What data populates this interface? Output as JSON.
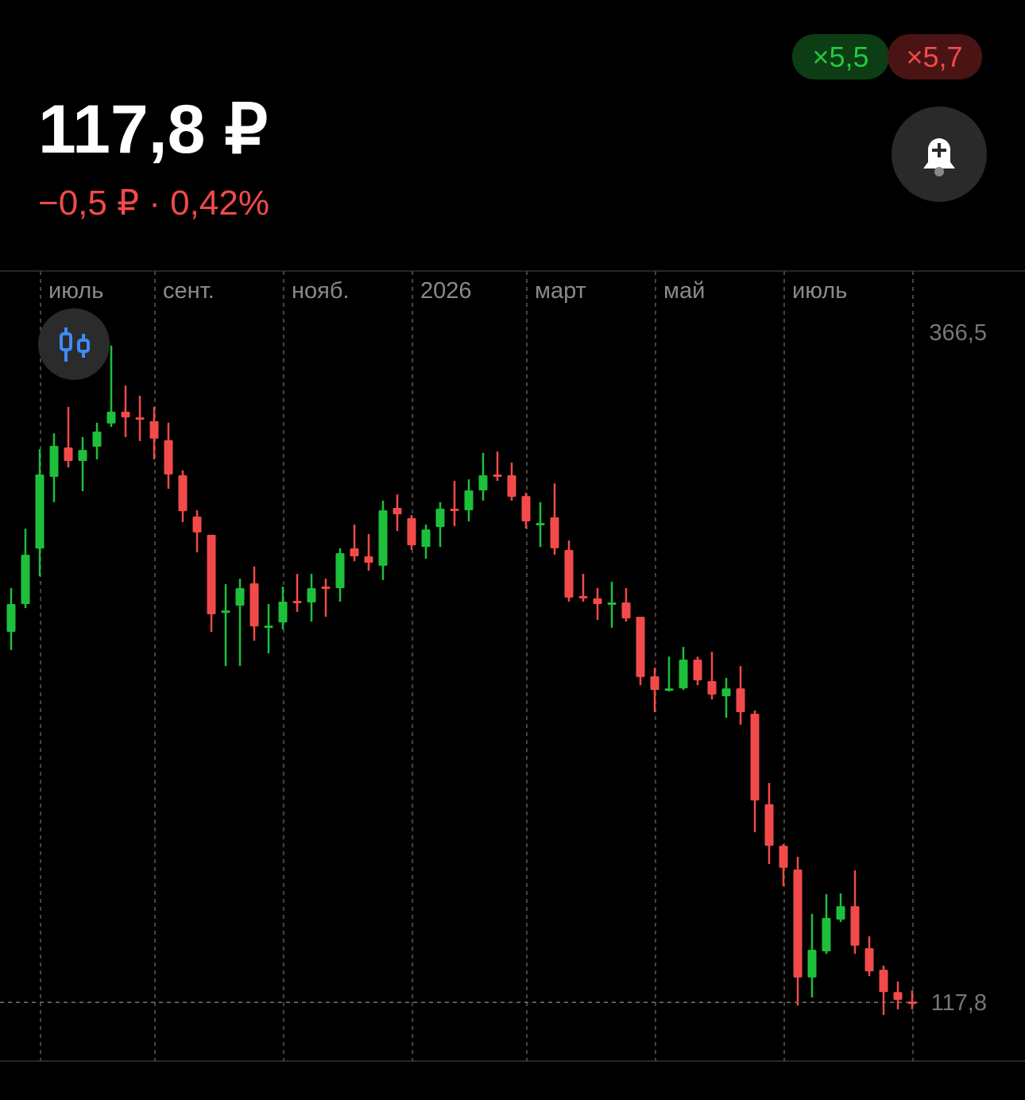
{
  "header": {
    "price": "117,8 ₽",
    "change": "−0,5 ₽ · 0,42%",
    "badges": [
      "×5,5",
      "×5,7"
    ]
  },
  "chart_data": {
    "type": "candlestick",
    "categories": [
      null,
      null,
      "июль",
      null,
      null,
      null,
      null,
      null,
      null,
      null,
      "сент.",
      null,
      null,
      null,
      null,
      null,
      null,
      null,
      null,
      "нояб.",
      null,
      null,
      null,
      null,
      null,
      null,
      null,
      null,
      "2026",
      null,
      null,
      null,
      null,
      null,
      null,
      null,
      "март",
      null,
      null,
      null,
      null,
      null,
      null,
      null,
      null,
      "май",
      null,
      null,
      null,
      null,
      null,
      null,
      null,
      null,
      "июль",
      null,
      null,
      null,
      null,
      null,
      null,
      null,
      null,
      null
    ],
    "open": [
      255.3,
      265.6,
      286.2,
      312.8,
      323.7,
      318.7,
      324.0,
      332.6,
      337.0,
      334.9,
      333.5,
      326.4,
      313.4,
      298.1,
      291.3,
      262.4,
      265.0,
      273.3,
      256.8,
      258.8,
      266.8,
      266.2,
      272.1,
      271.5,
      286.3,
      283.3,
      279.8,
      301.3,
      297.5,
      286.8,
      294.2,
      301.0,
      300.4,
      307.8,
      313.7,
      313.4,
      305.7,
      295.1,
      297.8,
      285.7,
      268.6,
      267.7,
      265.6,
      266.2,
      260.9,
      238.8,
      233.7,
      234.3,
      245.0,
      237.0,
      231.4,
      234.3,
      224.9,
      191.3,
      175.9,
      167.1,
      127.0,
      136.7,
      148.5,
      153.5,
      137.9,
      129.9,
      121.6,
      118.1
    ],
    "high": [
      271.5,
      293.6,
      323.1,
      329.0,
      338.8,
      327.6,
      332.9,
      361.5,
      346.7,
      342.9,
      338.8,
      332.9,
      315.2,
      300.4,
      291.3,
      273.0,
      275.0,
      279.5,
      265.6,
      272.1,
      276.8,
      276.8,
      275.0,
      286.3,
      295.1,
      291.6,
      304.0,
      306.3,
      298.6,
      295.1,
      303.4,
      311.3,
      311.9,
      321.7,
      322.2,
      318.1,
      306.9,
      303.4,
      310.4,
      289.2,
      276.8,
      271.5,
      273.9,
      271.5,
      260.9,
      242.0,
      246.1,
      249.7,
      246.1,
      247.9,
      238.2,
      242.6,
      226.1,
      199.2,
      176.5,
      171.8,
      150.6,
      157.9,
      158.2,
      166.8,
      142.3,
      131.4,
      125.5,
      122.2
    ],
    "low": [
      248.5,
      264.1,
      275.9,
      303.4,
      316.3,
      307.5,
      319.3,
      331.4,
      327.6,
      326.1,
      319.3,
      308.4,
      296.0,
      284.8,
      255.3,
      242.6,
      242.6,
      252.0,
      247.3,
      256.2,
      262.7,
      259.1,
      260.9,
      266.5,
      281.5,
      278.0,
      274.5,
      292.7,
      285.7,
      282.4,
      286.8,
      294.5,
      296.3,
      304.0,
      311.3,
      304.0,
      293.6,
      286.8,
      283.9,
      266.5,
      266.5,
      259.7,
      256.8,
      259.1,
      235.5,
      225.5,
      233.2,
      233.7,
      235.5,
      230.2,
      223.4,
      220.8,
      180.9,
      169.1,
      160.9,
      116.6,
      119.6,
      135.8,
      147.6,
      135.8,
      127.5,
      113.1,
      115.2,
      115.2
    ],
    "close": [
      265.6,
      283.9,
      313.7,
      324.3,
      318.7,
      322.8,
      329.6,
      337.0,
      334.9,
      334.3,
      327.0,
      313.7,
      300.1,
      292.2,
      261.8,
      263.2,
      271.5,
      257.3,
      257.6,
      266.5,
      266.2,
      271.5,
      271.5,
      284.5,
      283.3,
      280.9,
      300.4,
      298.9,
      287.4,
      293.3,
      301.0,
      300.4,
      307.8,
      313.4,
      313.1,
      305.4,
      296.3,
      295.7,
      286.3,
      268.0,
      268.0,
      265.6,
      266.2,
      260.3,
      238.5,
      233.7,
      234.3,
      245.0,
      237.3,
      232.0,
      234.3,
      225.5,
      192.7,
      175.9,
      167.7,
      127.0,
      137.3,
      149.1,
      153.5,
      138.8,
      129.3,
      121.6,
      118.7,
      117.8
    ],
    "colors": {
      "up": "#1dbf3b",
      "down": "#f24a4a"
    },
    "ylim": [
      96.0,
      389.2
    ],
    "yticks": [
      {
        "value": 366.5,
        "label": "366,5"
      },
      {
        "value": 117.8,
        "label": "117,8"
      }
    ],
    "grid": true
  }
}
